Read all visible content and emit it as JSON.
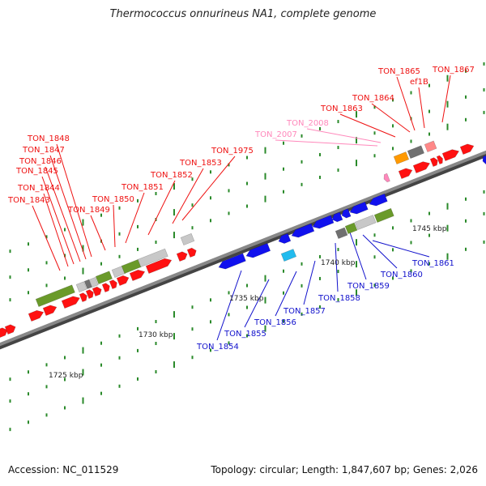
{
  "title": "Thermococcus onnurineus NA1, complete genome",
  "footer": {
    "accession": "Accession: NC_011529",
    "summary": "Topology: circular; Length: 1,847,607 bp; Genes: 2,026"
  },
  "colors": {
    "top_label": "#ee1111",
    "pink_label": "#ff88bb",
    "bottom_label": "#1111cc",
    "axis": "#888888",
    "tick": "#2a8a2a",
    "forward_gene": "#ff1111",
    "reverse_gene": "#1111ee",
    "olive": "#6a9a2a",
    "light_gray": "#c8c8c8",
    "dark_gray": "#707070",
    "orange": "#ff9900",
    "salmon": "#ff8888",
    "cyan": "#22bbee"
  },
  "scale_labels": [
    "1725 kbp",
    "1730 kbp",
    "1735 kbp",
    "1740 kbp",
    "1745 kbp"
  ],
  "top_labels": [
    "TON_1843",
    "TON_1844",
    "TON_1845",
    "TON_1846",
    "TON_1847",
    "TON_1848",
    "TON_1849",
    "TON_1850",
    "TON_1851",
    "TON_1852",
    "TON_1853",
    "TON_1975",
    "TON_1863",
    "TON_1864",
    "TON_1865",
    "ef1B",
    "TON_1867"
  ],
  "pink_labels": [
    "TON_2007",
    "TON_2008"
  ],
  "bottom_labels": [
    "TON_1854",
    "TON_1855",
    "TON_1856",
    "TON_1857",
    "TON_1858",
    "TON_1859",
    "TON_1860",
    "TON_1861"
  ]
}
